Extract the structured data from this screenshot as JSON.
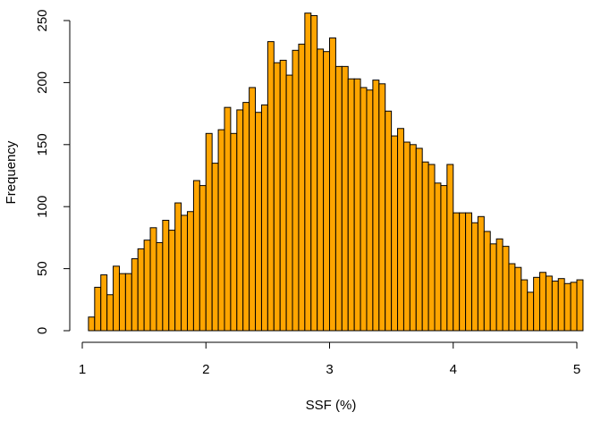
{
  "chart_data": {
    "type": "bar",
    "subtype": "histogram",
    "xlabel": "SSF (%)",
    "ylabel": "Frequency",
    "xlim": [
      1,
      5
    ],
    "ylim": [
      0,
      250
    ],
    "xticks": [
      "1",
      "2",
      "3",
      "4",
      "5"
    ],
    "yticks": [
      "0",
      "50",
      "100",
      "150",
      "200",
      "250"
    ],
    "bin_width": 0.05,
    "bins_start": 1.05,
    "values": [
      11,
      35,
      45,
      29,
      52,
      46,
      46,
      58,
      66,
      73,
      83,
      71,
      89,
      81,
      103,
      93,
      96,
      121,
      117,
      159,
      135,
      162,
      180,
      159,
      178,
      184,
      196,
      176,
      182,
      233,
      216,
      218,
      206,
      226,
      231,
      256,
      254,
      227,
      225,
      236,
      213,
      213,
      203,
      203,
      196,
      194,
      202,
      199,
      177,
      157,
      163,
      152,
      150,
      147,
      136,
      134,
      119,
      117,
      134,
      95,
      95,
      95,
      87,
      92,
      80,
      70,
      74,
      68,
      54,
      51,
      41,
      31,
      43,
      47,
      44,
      40,
      42,
      38,
      39,
      41
    ],
    "bar_color": "#FFA500",
    "edge_color": "#000000",
    "grid": false
  }
}
